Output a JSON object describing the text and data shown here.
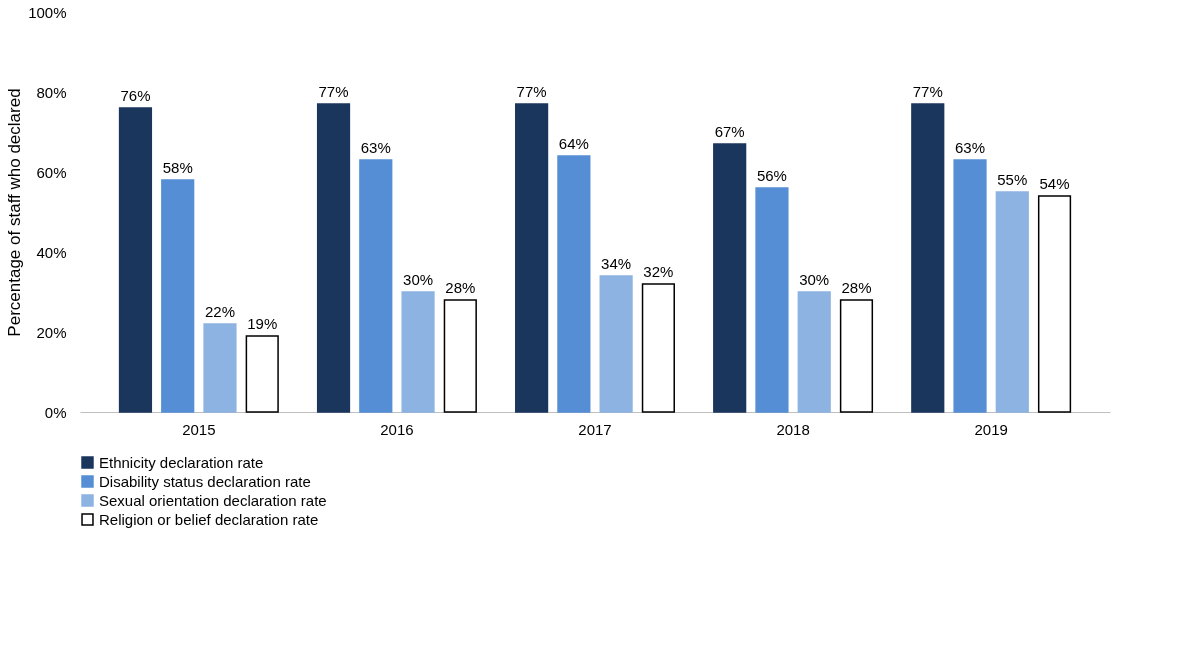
{
  "chart_data": {
    "type": "bar",
    "ylabel": "Percentage of staff who declared",
    "categories": [
      "2015",
      "2016",
      "2017",
      "2018",
      "2019"
    ],
    "series": [
      {
        "name": "Ethnicity declaration rate",
        "color": "#1b365d",
        "values": [
          76,
          77,
          77,
          67,
          77
        ],
        "value_labels": [
          "76%",
          "77%",
          "77%",
          "67%",
          "77%"
        ]
      },
      {
        "name": "Disability status declaration rate",
        "color": "#558ed5",
        "values": [
          58,
          63,
          64,
          56,
          63
        ],
        "value_labels": [
          "58%",
          "63%",
          "64%",
          "56%",
          "63%"
        ]
      },
      {
        "name": "Sexual orientation declaration rate",
        "color": "#8db3e2",
        "values": [
          22,
          30,
          34,
          30,
          55
        ],
        "value_labels": [
          "22%",
          "30%",
          "34%",
          "30%",
          "55%"
        ]
      },
      {
        "name": "Religion or belief declaration rate",
        "color": "#ffffff",
        "values": [
          19,
          28,
          32,
          28,
          54
        ],
        "value_labels": [
          "19%",
          "28%",
          "32%",
          "28%",
          "54%"
        ]
      }
    ],
    "ylim": [
      0,
      100
    ],
    "yticks": [
      {
        "value": 0,
        "label": "0%"
      },
      {
        "value": 20,
        "label": "20%"
      },
      {
        "value": 40,
        "label": "40%"
      },
      {
        "value": 60,
        "label": "60%"
      },
      {
        "value": 80,
        "label": "80%"
      },
      {
        "value": 100,
        "label": "100%"
      }
    ],
    "grid": false,
    "legend": "bottom"
  }
}
